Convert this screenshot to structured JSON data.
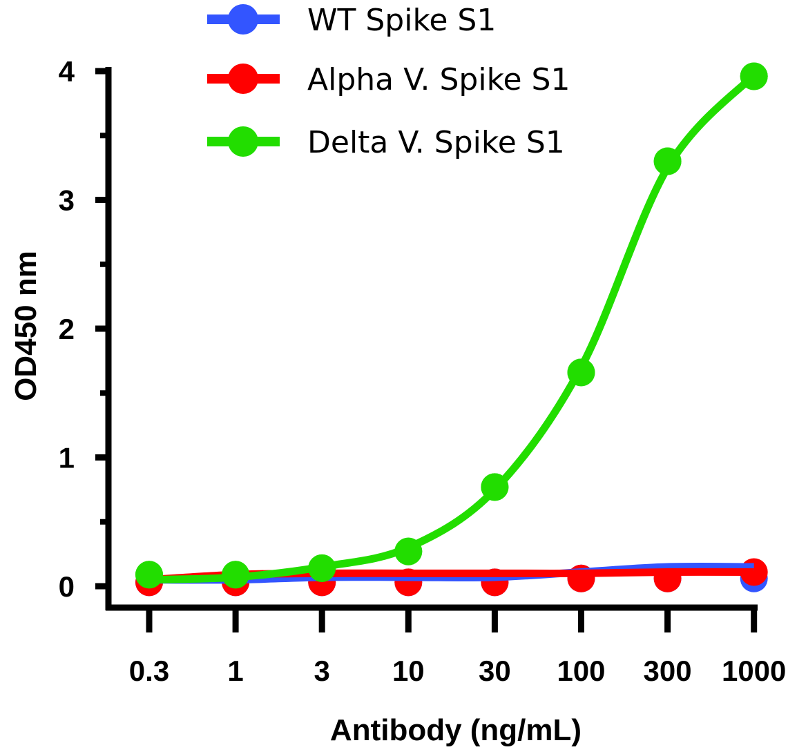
{
  "chart_data": {
    "type": "line",
    "title": "",
    "xlabel": "Antibody (ng/mL)",
    "ylabel": "OD450 nm",
    "x_scale": "log",
    "categories": [
      "0.3",
      "1",
      "3",
      "10",
      "30",
      "100",
      "300",
      "1000"
    ],
    "x": [
      0.3,
      1,
      3,
      10,
      30,
      100,
      300,
      1000
    ],
    "ylim": [
      0,
      4
    ],
    "yticks": [
      "0",
      "1",
      "2",
      "3",
      "4"
    ],
    "grid": false,
    "legend_position": "top",
    "series": [
      {
        "name": "WT Spike S1",
        "color": "#3355ff",
        "values": [
          0.03,
          0.03,
          0.03,
          0.03,
          0.03,
          0.06,
          0.06,
          0.06
        ],
        "fit": [
          0.05,
          0.05,
          0.07,
          0.07,
          0.07,
          0.11,
          0.15,
          0.15
        ]
      },
      {
        "name": "Alpha V. Spike S1",
        "color": "#ff0000",
        "values": [
          0.03,
          0.03,
          0.03,
          0.03,
          0.03,
          0.06,
          0.06,
          0.11
        ],
        "fit": [
          0.05,
          0.09,
          0.1,
          0.1,
          0.1,
          0.1,
          0.11,
          0.11
        ]
      },
      {
        "name": "Delta V. Spike S1",
        "color": "#22dd00",
        "values": [
          0.09,
          0.09,
          0.14,
          0.27,
          0.77,
          1.66,
          3.3,
          3.96
        ],
        "fit": [
          0.05,
          0.07,
          0.15,
          0.3,
          0.75,
          1.7,
          3.25,
          3.97
        ]
      }
    ]
  }
}
